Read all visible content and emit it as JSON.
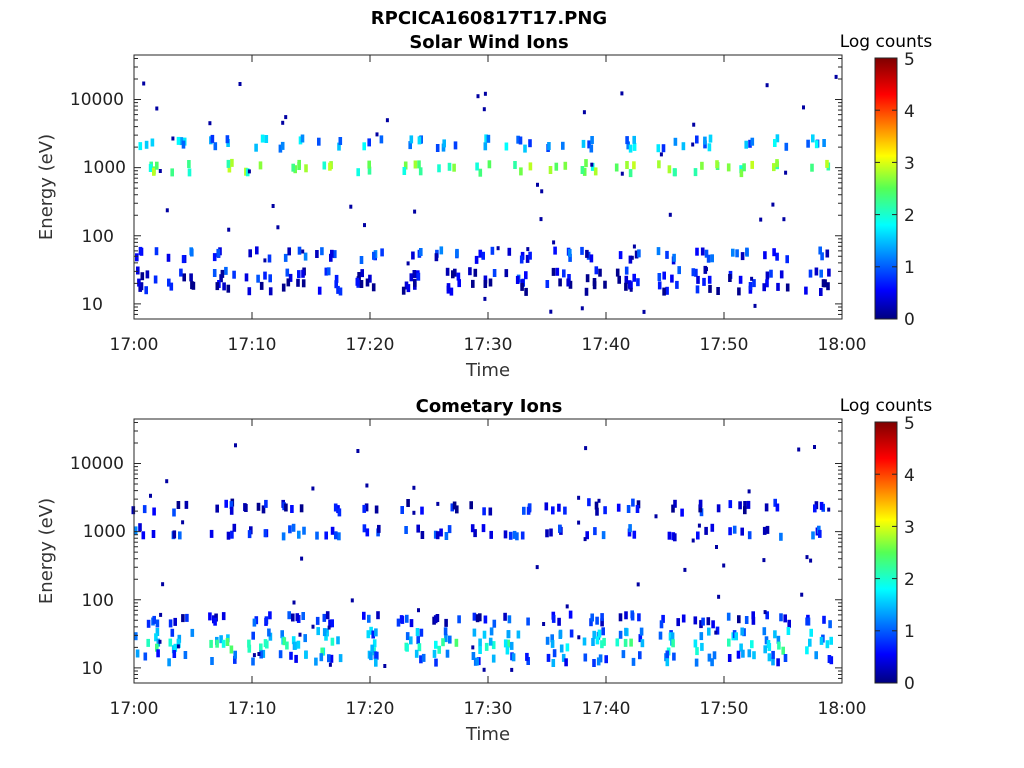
{
  "figure": {
    "title": "RPCICA160817T17.PNG"
  },
  "chart_data": [
    {
      "type": "heatmap",
      "title": "Solar Wind Ions",
      "xlabel": "Time",
      "ylabel": "Energy (eV)",
      "x_ticks": [
        "17:00",
        "17:10",
        "17:20",
        "17:30",
        "17:40",
        "17:50",
        "18:00"
      ],
      "xlim": [
        "17:00",
        "18:00"
      ],
      "y_scale": "log",
      "ylim": [
        6,
        45000
      ],
      "y_ticks": [
        "10",
        "100",
        "1000",
        "10000"
      ],
      "colorbar": {
        "label": "Log counts",
        "ticks": [
          "0",
          "1",
          "2",
          "3",
          "4",
          "5"
        ],
        "range": [
          0,
          5
        ],
        "colormap": "jet"
      },
      "sweep_minutes": [
        1.0,
        4.0,
        7.5,
        10.5,
        13.5,
        16.5,
        20.0,
        23.5,
        26.5,
        29.5,
        32.5,
        36.0,
        39.0,
        42.0,
        45.5,
        48.5,
        51.5,
        54.5,
        58.0
      ],
      "bands": [
        {
          "energy_eV": 2300,
          "log_counts": 1.3
        },
        {
          "energy_eV": 1000,
          "log_counts": 2.4
        },
        {
          "energy_eV": 52,
          "log_counts": 0.7
        },
        {
          "energy_eV": 27,
          "log_counts": 0.5
        },
        {
          "energy_eV": 18,
          "log_counts": 0.3
        }
      ]
    },
    {
      "type": "heatmap",
      "title": "Cometary Ions",
      "xlabel": "Time",
      "ylabel": "Energy (eV)",
      "x_ticks": [
        "17:00",
        "17:10",
        "17:20",
        "17:30",
        "17:40",
        "17:50",
        "18:00"
      ],
      "xlim": [
        "17:00",
        "18:00"
      ],
      "y_scale": "log",
      "ylim": [
        6,
        45000
      ],
      "y_ticks": [
        "10",
        "100",
        "1000",
        "10000"
      ],
      "colorbar": {
        "label": "Log counts",
        "ticks": [
          "0",
          "1",
          "2",
          "3",
          "4",
          "5"
        ],
        "range": [
          0,
          5
        ],
        "colormap": "jet"
      },
      "sweep_minutes": [
        1.0,
        4.0,
        7.5,
        10.5,
        13.5,
        16.5,
        20.0,
        23.5,
        26.5,
        29.5,
        32.5,
        36.0,
        39.0,
        42.0,
        45.5,
        48.5,
        51.5,
        54.5,
        58.0
      ],
      "bands": [
        {
          "energy_eV": 2300,
          "log_counts": 0.4
        },
        {
          "energy_eV": 1000,
          "log_counts": 0.7
        },
        {
          "energy_eV": 52,
          "log_counts": 0.6
        },
        {
          "energy_eV": 30,
          "log_counts": 1.2
        },
        {
          "energy_eV": 21,
          "log_counts": 1.9
        },
        {
          "energy_eV": 14,
          "log_counts": 1.0
        }
      ]
    }
  ]
}
